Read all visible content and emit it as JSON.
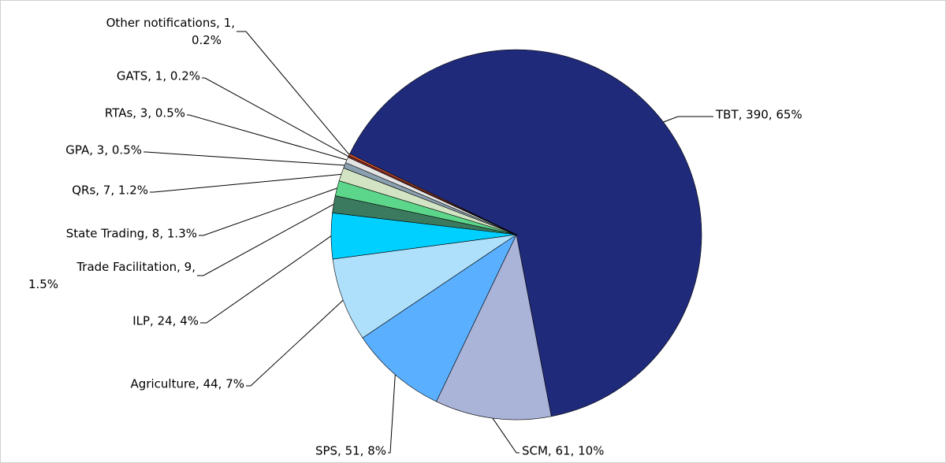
{
  "chart_data": {
    "type": "pie",
    "categories": [
      "TBT",
      "SCM",
      "SPS",
      "Agriculture",
      "ILP",
      "Trade Facilitation",
      "State Trading",
      "QRs",
      "GPA",
      "RTAs",
      "GATS",
      "Other notifications"
    ],
    "values": [
      390,
      61,
      51,
      44,
      24,
      9,
      8,
      7,
      3,
      3,
      1,
      1
    ],
    "value_labels": [
      "TBT, 390, 65%",
      "SCM, 61, 10%",
      "SPS, 51, 8%",
      "Agriculture, 44, 7%",
      "ILP, 24, 4%",
      "Trade Facilitation, 9, 1.5%",
      "State Trading, 8, 1.3%",
      "QRs, 7, 1.2%",
      "GPA, 3, 0.5%",
      "RTAs, 3, 0.5%",
      "GATS, 1, 0.2%",
      "Other notifications, 1, 0.2%"
    ],
    "colors": [
      "#1f2a7a",
      "#aab3d8",
      "#5ab0ff",
      "#aee0fb",
      "#00d0ff",
      "#3b7a5e",
      "#5cd68a",
      "#d3e4c4",
      "#8aa0b0",
      "#e4e4e4",
      "#8b2a2a",
      "#e86030"
    ]
  }
}
